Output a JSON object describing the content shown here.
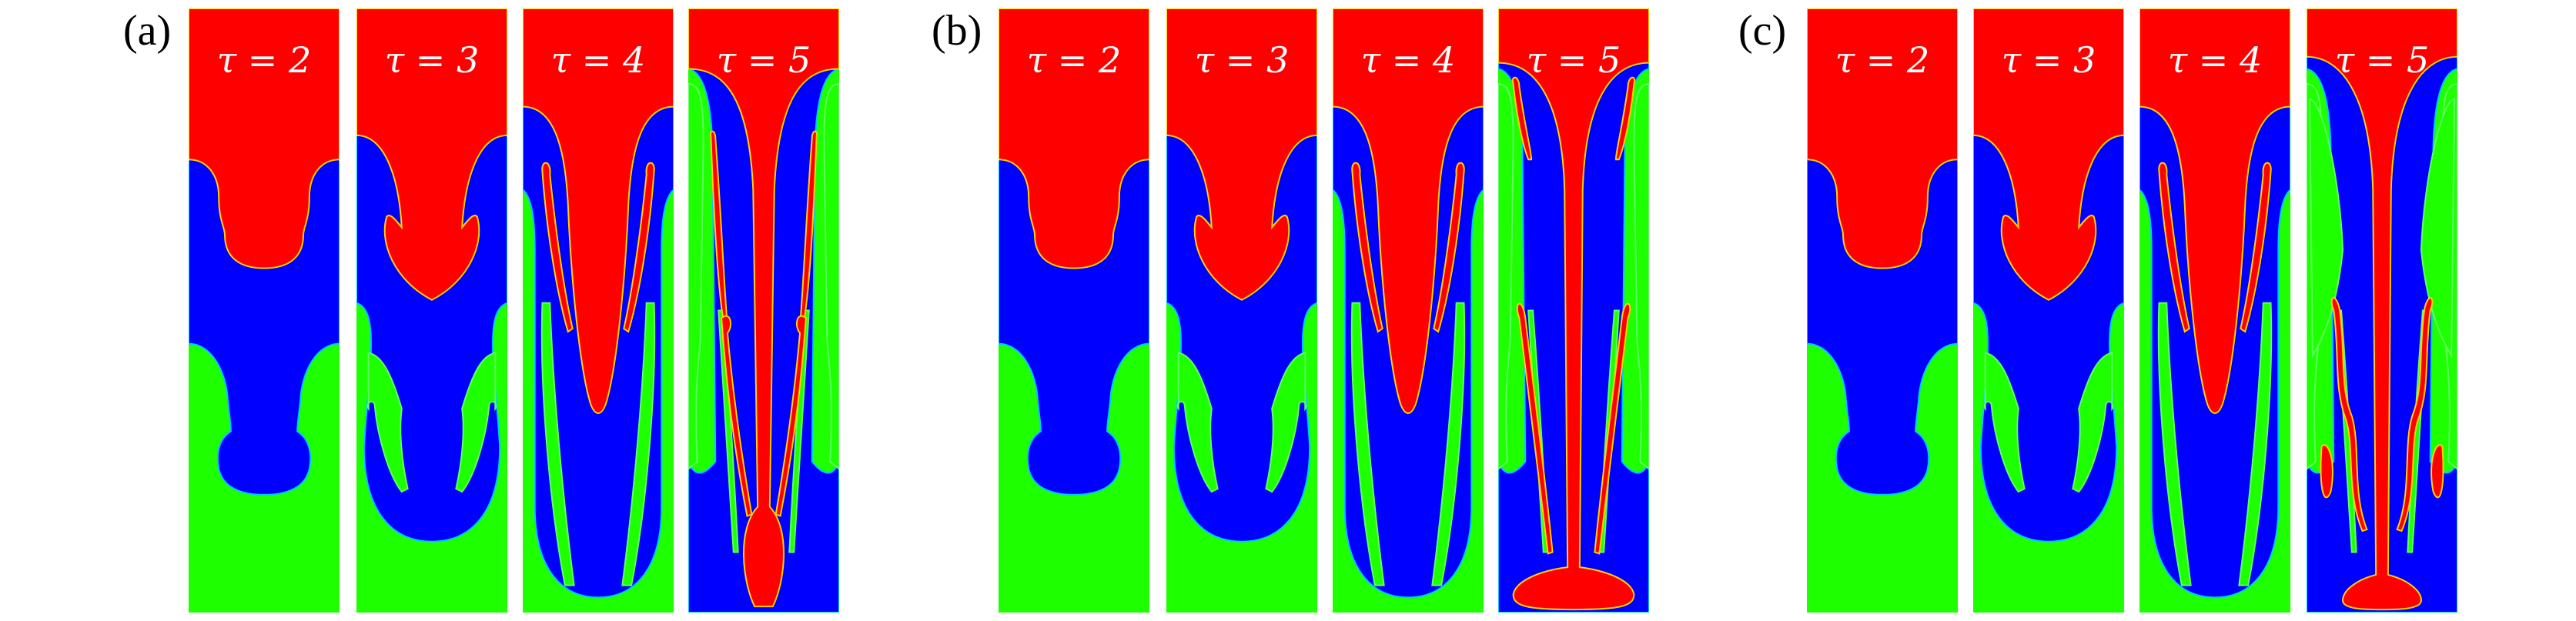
{
  "groups": [
    {
      "label": "(a)",
      "panels": [
        {
          "tau": "τ = 2"
        },
        {
          "tau": "τ = 3"
        },
        {
          "tau": "τ = 4"
        },
        {
          "tau": "τ = 5"
        }
      ]
    },
    {
      "label": "(b)",
      "panels": [
        {
          "tau": "τ = 2"
        },
        {
          "tau": "τ = 3"
        },
        {
          "tau": "τ = 4"
        },
        {
          "tau": "τ = 5"
        }
      ]
    },
    {
      "label": "(c)",
      "panels": [
        {
          "tau": "τ = 2"
        },
        {
          "tau": "τ = 3"
        },
        {
          "tau": "τ = 4"
        },
        {
          "tau": "τ = 5"
        }
      ]
    }
  ],
  "colors": {
    "heavy_fluid": "#ff0000",
    "middle_fluid": "#0000ff",
    "light_fluid": "#1eff00"
  }
}
